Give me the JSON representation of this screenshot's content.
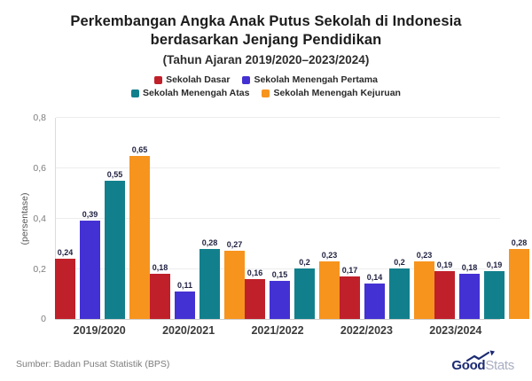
{
  "header": {
    "title": "Perkembangan Angka Anak Putus Sekolah di Indonesia berdasarkan Jenjang Pendidikan",
    "subtitle": "(Tahun Ajaran 2019/2020–2023/2024)"
  },
  "footer": {
    "source": "Sumber: Badan Pusat Statistik (BPS)",
    "logo": {
      "bold_part": "Good",
      "light_part": "Stats",
      "navy_color": "#1b2a72",
      "gray_color": "#a9aec2"
    }
  },
  "chart_data": {
    "type": "bar",
    "title": "Perkembangan Angka Anak Putus Sekolah di Indonesia berdasarkan Jenjang Pendidikan",
    "subtitle": "(Tahun Ajaran 2019/2020–2023/2024)",
    "xlabel": "",
    "ylabel": "(persentase)",
    "ylim": [
      0,
      0.8
    ],
    "grid": true,
    "legend_position": "top",
    "decimal_separator": ",",
    "categories": [
      "2019/2020",
      "2020/2021",
      "2021/2022",
      "2022/2023",
      "2023/2024"
    ],
    "y_ticks": [
      {
        "value": 0,
        "label": "0"
      },
      {
        "value": 0.2,
        "label": "0,2"
      },
      {
        "value": 0.4,
        "label": "0,4"
      },
      {
        "value": 0.6,
        "label": "0,6"
      },
      {
        "value": 0.8,
        "label": "0,8"
      }
    ],
    "series": [
      {
        "name": "Sekolah Dasar",
        "color": "#c0202a",
        "values": [
          0.24,
          0.18,
          0.16,
          0.17,
          0.19
        ],
        "labels": [
          "0,24",
          "0,18",
          "0,16",
          "0,17",
          "0,19"
        ]
      },
      {
        "name": "Sekolah Menengah Pertama",
        "color": "#4431d3",
        "values": [
          0.39,
          0.11,
          0.15,
          0.14,
          0.18
        ],
        "labels": [
          "0,39",
          "0,11",
          "0,15",
          "0,14",
          "0,18"
        ]
      },
      {
        "name": "Sekolah Menengah Atas",
        "color": "#12808c",
        "values": [
          0.55,
          0.28,
          0.2,
          0.2,
          0.19
        ],
        "labels": [
          "0,55",
          "0,28",
          "0,2",
          "0,2",
          "0,19"
        ]
      },
      {
        "name": "Sekolah Menengah Kejuruan",
        "color": "#f7941e",
        "values": [
          0.65,
          0.27,
          0.23,
          0.23,
          0.28
        ],
        "labels": [
          "0,65",
          "0,27",
          "0,23",
          "0,23",
          "0,28"
        ]
      }
    ]
  }
}
